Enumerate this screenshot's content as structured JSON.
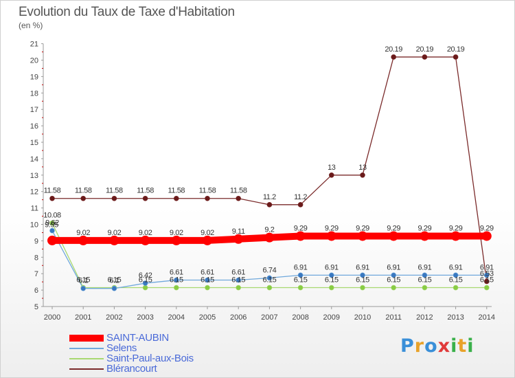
{
  "title": "Evolution du Taux de Taxe d'Habitation",
  "unit": "(en %)",
  "logo": {
    "text": "Proxiti",
    "letters": [
      {
        "char": "P",
        "color": "#3a8fd8"
      },
      {
        "char": "r",
        "color": "#e8a22a"
      },
      {
        "char": "o",
        "color": "#3a8fd8"
      },
      {
        "char": "x",
        "color": "#e03a3a"
      },
      {
        "char": "i",
        "color": "#3ab04a"
      },
      {
        "char": "t",
        "color": "#e8a22a"
      },
      {
        "char": "i",
        "color": "#3ab04a"
      }
    ]
  },
  "chart_data": {
    "type": "line",
    "title": "Evolution du Taux de Taxe d'Habitation",
    "xlabel": "",
    "ylabel": "(en %)",
    "ylim": [
      5,
      21
    ],
    "yticks": [
      "5",
      "6",
      "7",
      "8",
      "9",
      "10",
      "11",
      "12",
      "13",
      "14",
      "15",
      "16",
      "17",
      "18",
      "19",
      "20",
      "21"
    ],
    "grid": false,
    "legend_position": "bottom-left",
    "x": [
      "2000",
      "2001",
      "2002",
      "2003",
      "2004",
      "2005",
      "2006",
      "2007",
      "2008",
      "2009",
      "2010",
      "2011",
      "2012",
      "2013",
      "2014"
    ],
    "series": [
      {
        "name": "SAINT-AUBIN",
        "color": "#ff0000",
        "values": [
          9.02,
          9.02,
          9.02,
          9.02,
          9.02,
          9.02,
          9.11,
          9.2,
          9.29,
          9.29,
          9.29,
          9.29,
          9.29,
          9.29,
          9.29
        ],
        "labels": [
          "",
          "9.02",
          "9.02",
          "9.02",
          "9.02",
          "9.02",
          "9.11",
          "9.2",
          "9.29",
          "9.29",
          "9.29",
          "9.29",
          "9.29",
          "9.29",
          "9.29"
        ]
      },
      {
        "name": "Selens",
        "color": "#6fa8dc",
        "values": [
          9.62,
          6.1,
          6.1,
          6.42,
          6.61,
          6.61,
          6.61,
          6.74,
          6.91,
          6.91,
          6.91,
          6.91,
          6.91,
          6.91,
          6.91
        ],
        "labels": [
          "9.62",
          "6.1",
          "6.1",
          "6.42",
          "6.61",
          "6.61",
          "6.61",
          "6.74",
          "6.91",
          "6.91",
          "6.91",
          "6.91",
          "6.91",
          "6.91",
          "6.91"
        ]
      },
      {
        "name": "Saint-Paul-aux-Bois",
        "color": "#a8d870",
        "values": [
          10.08,
          6.15,
          6.15,
          6.15,
          6.15,
          6.15,
          6.15,
          6.15,
          6.15,
          6.15,
          6.15,
          6.15,
          6.15,
          6.15,
          6.15
        ],
        "labels": [
          "10.08",
          "6.15",
          "6.15",
          "6.15",
          "6.15",
          "6.15",
          "6.15",
          "6.15",
          "6.15",
          "6.15",
          "6.15",
          "6.15",
          "6.15",
          "6.15",
          "6.15"
        ]
      },
      {
        "name": "Blérancourt",
        "color": "#7a2a2a",
        "values": [
          11.58,
          11.58,
          11.58,
          11.58,
          11.58,
          11.58,
          11.58,
          11.2,
          11.2,
          13,
          13,
          20.19,
          20.19,
          20.19,
          6.53
        ],
        "labels": [
          "11.58",
          "11.58",
          "11.58",
          "11.58",
          "11.58",
          "11.58",
          "11.58",
          "11.2",
          "11.2",
          "13",
          "13",
          "20.19",
          "20.19",
          "20.19",
          "6.53"
        ]
      }
    ],
    "extra_labels": [
      "9.95"
    ]
  }
}
